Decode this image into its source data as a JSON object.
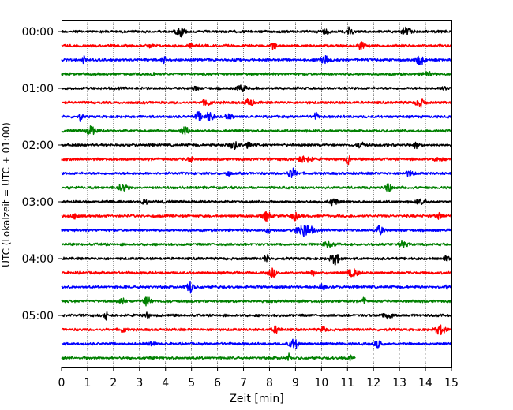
{
  "chart_data": {
    "type": "line",
    "title": "",
    "xlabel": "Zeit  [min]",
    "ylabel": "UTC (Lokalzeit = UTC + 01:00)",
    "xlim": [
      0,
      15
    ],
    "x_ticks": [
      "0",
      "1",
      "2",
      "3",
      "4",
      "5",
      "6",
      "7",
      "8",
      "9",
      "10",
      "11",
      "12",
      "13",
      "14",
      "15"
    ],
    "y_tick_labels": [
      "00:00",
      "01:00",
      "02:00",
      "03:00",
      "04:00",
      "05:00"
    ],
    "y_tick_rows": [
      0,
      4,
      8,
      12,
      16,
      20
    ],
    "grid": "vertical dotted lines at each minute",
    "color_cycle": [
      "#000000",
      "#ff0000",
      "#0000ff",
      "#008000"
    ],
    "row_minutes_per_line": 15,
    "rows": [
      {
        "time": "00:00",
        "color": "#000000",
        "end_min": 15
      },
      {
        "time": "00:15",
        "color": "#ff0000",
        "end_min": 15
      },
      {
        "time": "00:30",
        "color": "#0000ff",
        "end_min": 15
      },
      {
        "time": "00:45",
        "color": "#008000",
        "end_min": 15
      },
      {
        "time": "01:00",
        "color": "#000000",
        "end_min": 15
      },
      {
        "time": "01:15",
        "color": "#ff0000",
        "end_min": 15
      },
      {
        "time": "01:30",
        "color": "#0000ff",
        "end_min": 15
      },
      {
        "time": "01:45",
        "color": "#008000",
        "end_min": 15
      },
      {
        "time": "02:00",
        "color": "#000000",
        "end_min": 15
      },
      {
        "time": "02:15",
        "color": "#ff0000",
        "end_min": 15
      },
      {
        "time": "02:30",
        "color": "#0000ff",
        "end_min": 15
      },
      {
        "time": "02:45",
        "color": "#008000",
        "end_min": 15
      },
      {
        "time": "03:00",
        "color": "#000000",
        "end_min": 15
      },
      {
        "time": "03:15",
        "color": "#ff0000",
        "end_min": 15
      },
      {
        "time": "03:30",
        "color": "#0000ff",
        "end_min": 15
      },
      {
        "time": "03:45",
        "color": "#008000",
        "end_min": 15
      },
      {
        "time": "04:00",
        "color": "#000000",
        "end_min": 15
      },
      {
        "time": "04:15",
        "color": "#ff0000",
        "end_min": 15
      },
      {
        "time": "04:30",
        "color": "#0000ff",
        "end_min": 15
      },
      {
        "time": "04:45",
        "color": "#008000",
        "end_min": 15
      },
      {
        "time": "05:00",
        "color": "#000000",
        "end_min": 15
      },
      {
        "time": "05:15",
        "color": "#ff0000",
        "end_min": 15
      },
      {
        "time": "05:30",
        "color": "#0000ff",
        "end_min": 15
      },
      {
        "time": "05:45",
        "color": "#008000",
        "end_min": 11.3
      }
    ]
  }
}
